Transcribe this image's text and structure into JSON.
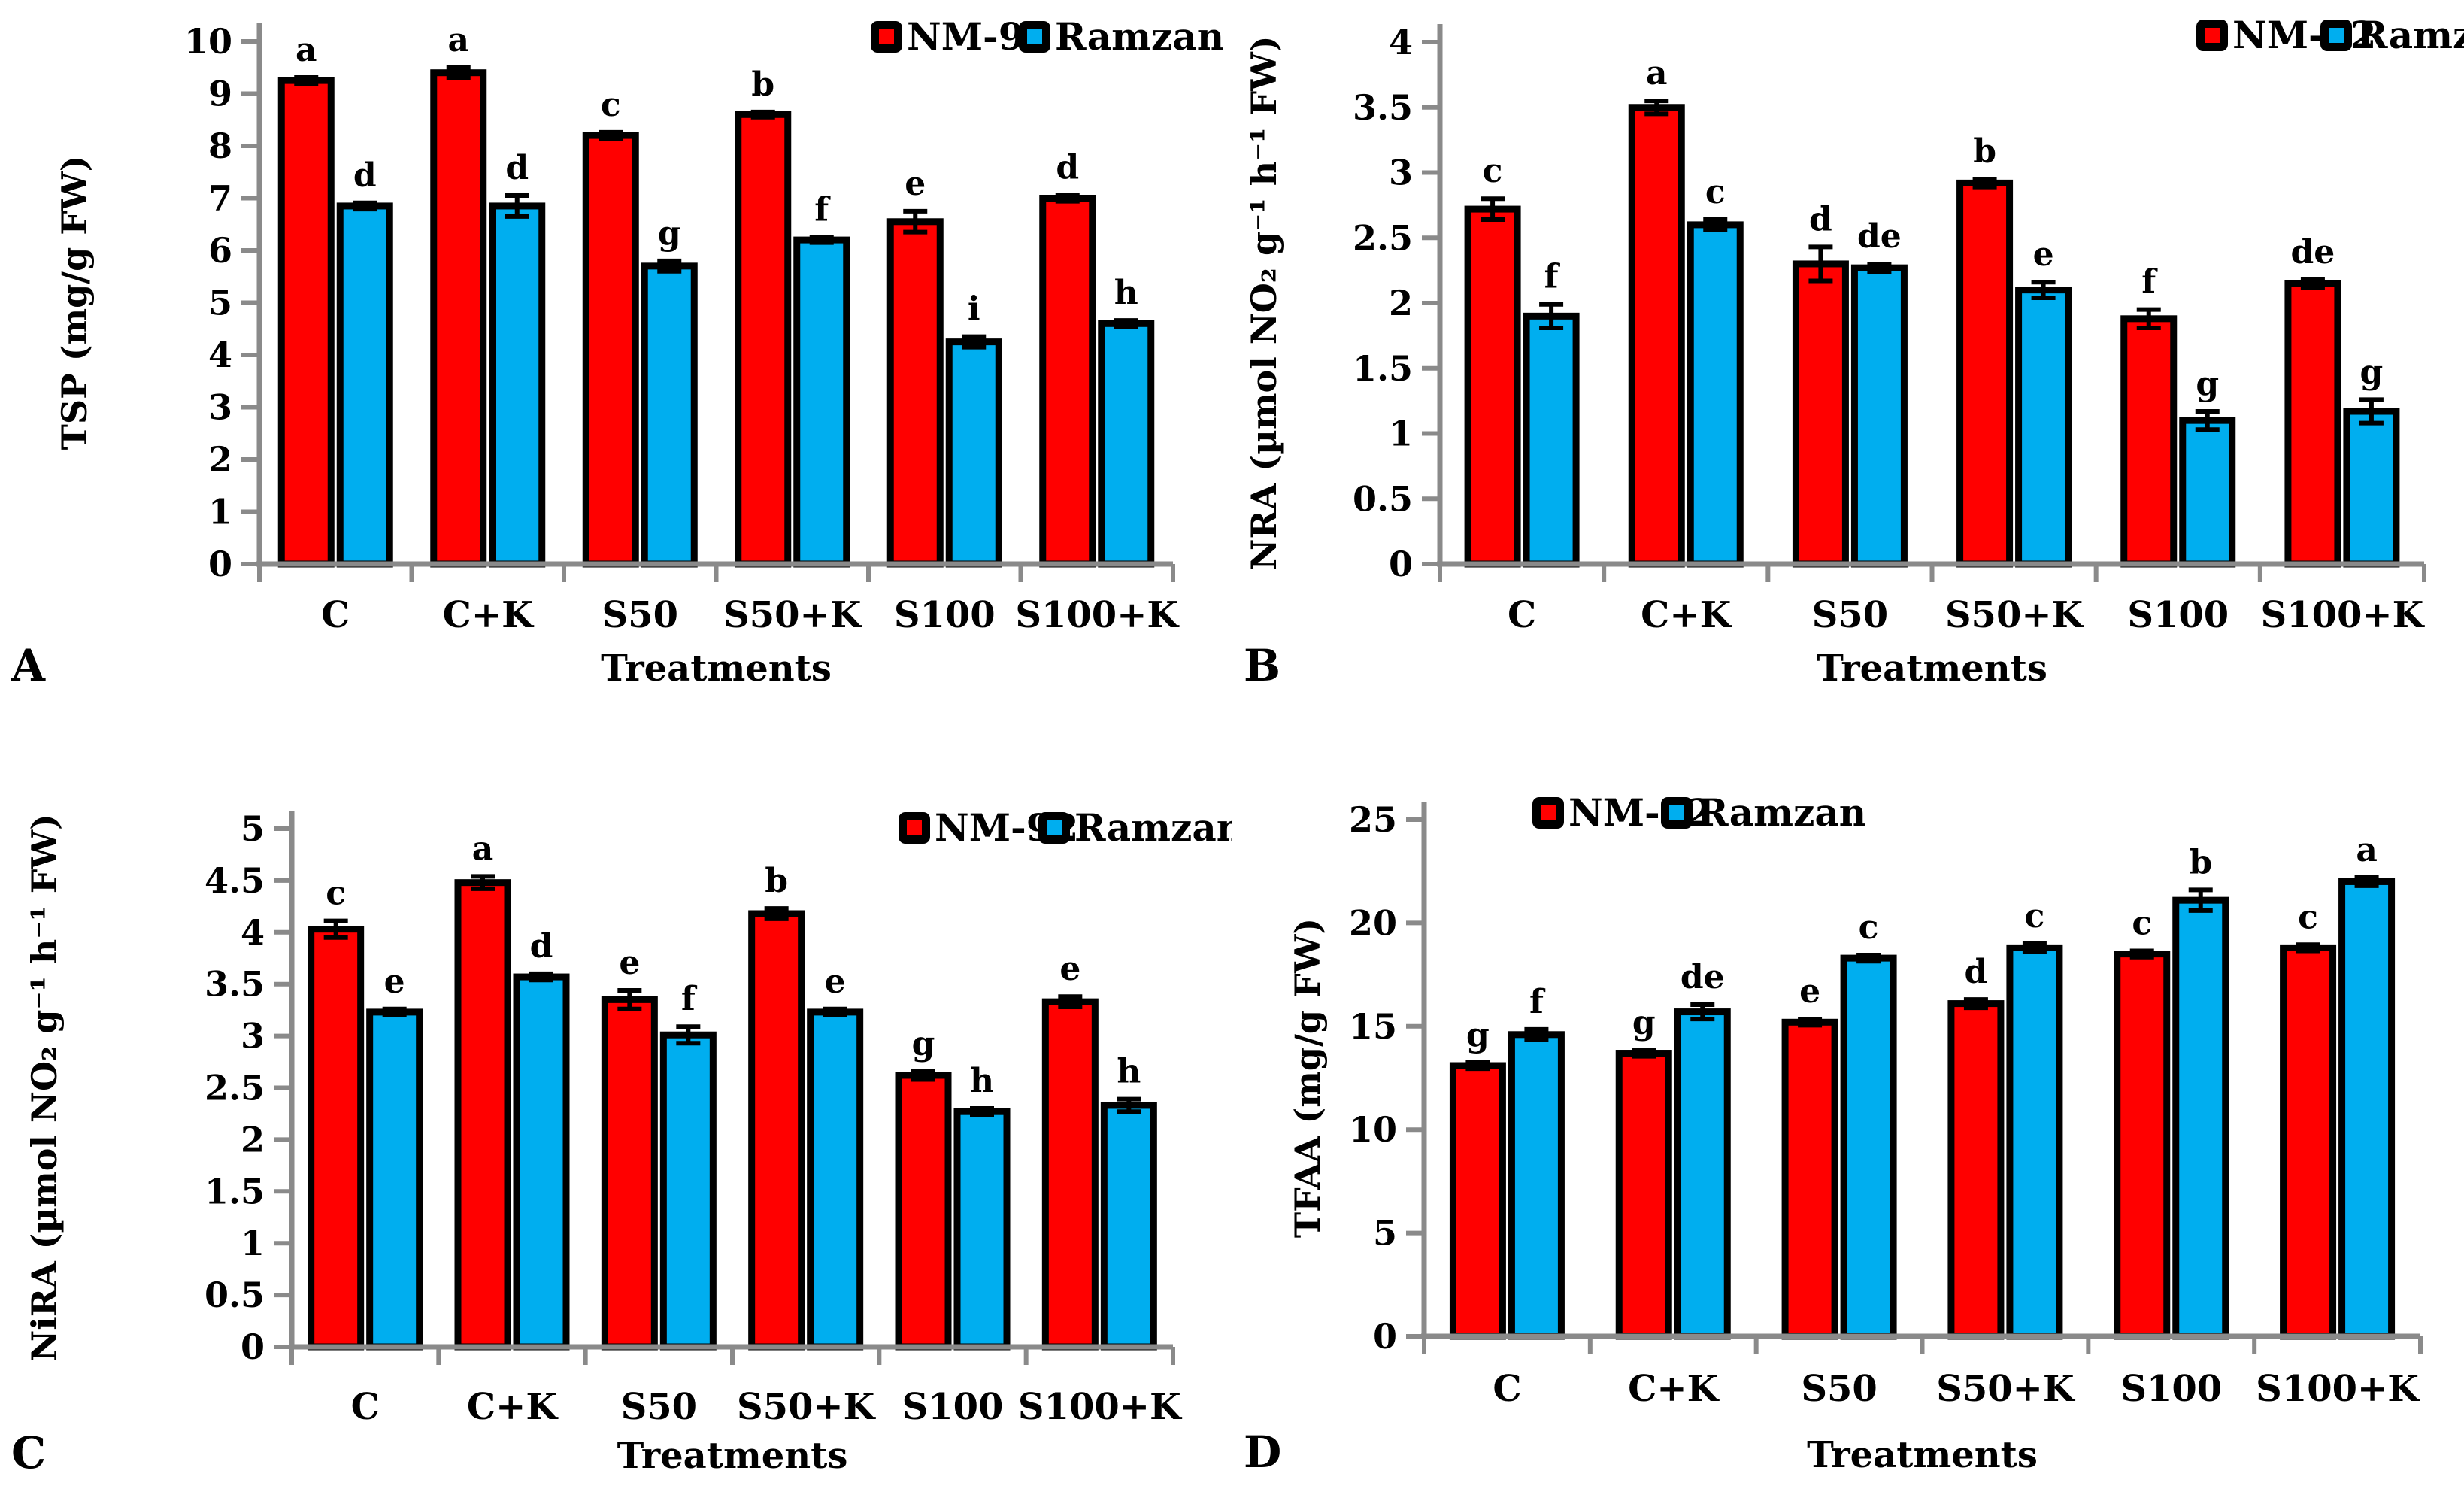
{
  "figure": {
    "xlabel": "Treatments",
    "categories": [
      "C",
      "C+K",
      "S50",
      "S50+K",
      "S100",
      "S100+K"
    ],
    "legend_items": [
      {
        "label": "NM-92",
        "color": "#ff0000"
      },
      {
        "label": "Ramzan",
        "color": "#00aeef"
      }
    ],
    "colors": {
      "nm92": "#ff0000",
      "ramzan": "#00aeef",
      "axis": "#8a8a8a",
      "bar_border": "#000000"
    }
  },
  "chart_data": [
    {
      "type": "bar",
      "panel_label": "A",
      "ylabel": "TSP (mg/g FW)",
      "xlabel": "Treatments",
      "ylim": [
        0,
        10
      ],
      "ystep": 1,
      "grid": false,
      "legend_position": "top-right",
      "categories": [
        "C",
        "C+K",
        "S50",
        "S50+K",
        "S100",
        "S100+K"
      ],
      "series": [
        {
          "name": "NM-92",
          "color": "#ff0000",
          "values": [
            9.25,
            9.4,
            8.2,
            8.6,
            6.55,
            7.0
          ],
          "errors": [
            0.06,
            0.1,
            0.06,
            0.05,
            0.2,
            0.06
          ],
          "letters": [
            "a",
            "a",
            "c",
            "b",
            "e",
            "d"
          ]
        },
        {
          "name": "Ramzan",
          "color": "#00aeef",
          "values": [
            6.85,
            6.85,
            5.7,
            6.2,
            4.25,
            4.6
          ],
          "errors": [
            0.06,
            0.2,
            0.1,
            0.05,
            0.1,
            0.06
          ],
          "letters": [
            "d",
            "d",
            "g",
            "f",
            "i",
            "h"
          ]
        }
      ]
    },
    {
      "type": "bar",
      "panel_label": "B",
      "ylabel": "NRA (µmol NO₂ g⁻¹ h⁻¹ FW)",
      "xlabel": "Treatments",
      "ylim": [
        0,
        4
      ],
      "ystep": 0.5,
      "grid": false,
      "legend_position": "top-right",
      "categories": [
        "C",
        "C+K",
        "S50",
        "S50+K",
        "S100",
        "S100+K"
      ],
      "series": [
        {
          "name": "NM-92",
          "color": "#ff0000",
          "values": [
            2.72,
            3.5,
            2.3,
            2.92,
            1.88,
            2.15
          ],
          "errors": [
            0.08,
            0.05,
            0.13,
            0.03,
            0.07,
            0.03
          ],
          "letters": [
            "c",
            "a",
            "d",
            "b",
            "f",
            "de"
          ]
        },
        {
          "name": "Ramzan",
          "color": "#00aeef",
          "values": [
            1.9,
            2.6,
            2.27,
            2.1,
            1.1,
            1.17
          ],
          "errors": [
            0.09,
            0.04,
            0.03,
            0.06,
            0.07,
            0.09
          ],
          "letters": [
            "f",
            "c",
            "de",
            "e",
            "g",
            "g"
          ]
        }
      ]
    },
    {
      "type": "bar",
      "panel_label": "C",
      "ylabel": "NiRA (µmol NO₂ g⁻¹ h⁻¹ FW)",
      "xlabel": "Treatments",
      "ylim": [
        0,
        5
      ],
      "ystep": 0.5,
      "grid": false,
      "legend_position": "top-right",
      "categories": [
        "C",
        "C+K",
        "S50",
        "S50+K",
        "S100",
        "S100+K"
      ],
      "series": [
        {
          "name": "NM-92",
          "color": "#ff0000",
          "values": [
            4.03,
            4.48,
            3.35,
            4.18,
            2.62,
            3.33
          ],
          "errors": [
            0.08,
            0.06,
            0.09,
            0.05,
            0.04,
            0.05
          ],
          "letters": [
            "c",
            "a",
            "e",
            "b",
            "g",
            "e"
          ]
        },
        {
          "name": "Ramzan",
          "color": "#00aeef",
          "values": [
            3.23,
            3.57,
            3.01,
            3.23,
            2.27,
            2.33
          ],
          "errors": [
            0.03,
            0.03,
            0.08,
            0.03,
            0.03,
            0.06
          ],
          "letters": [
            "e",
            "d",
            "f",
            "e",
            "h",
            "h"
          ]
        }
      ]
    },
    {
      "type": "bar",
      "panel_label": "D",
      "ylabel": "TFAA (mg/g FW)",
      "xlabel": "Treatments",
      "ylim": [
        0,
        25
      ],
      "ystep": 5,
      "grid": false,
      "legend_position": "top-left",
      "categories": [
        "C",
        "C+K",
        "S50",
        "S50+K",
        "S100",
        "S100+K"
      ],
      "series": [
        {
          "name": "NM-92",
          "color": "#ff0000",
          "values": [
            13.1,
            13.7,
            15.2,
            16.1,
            18.5,
            18.8
          ],
          "errors": [
            0.15,
            0.15,
            0.15,
            0.2,
            0.15,
            0.15
          ],
          "letters": [
            "g",
            "g",
            "e",
            "d",
            "c",
            "c"
          ]
        },
        {
          "name": "Ramzan",
          "color": "#00aeef",
          "values": [
            14.6,
            15.7,
            18.3,
            18.8,
            21.1,
            22.0
          ],
          "errors": [
            0.25,
            0.35,
            0.15,
            0.2,
            0.5,
            0.2
          ],
          "letters": [
            "f",
            "de",
            "c",
            "c",
            "b",
            "a"
          ]
        }
      ]
    }
  ]
}
